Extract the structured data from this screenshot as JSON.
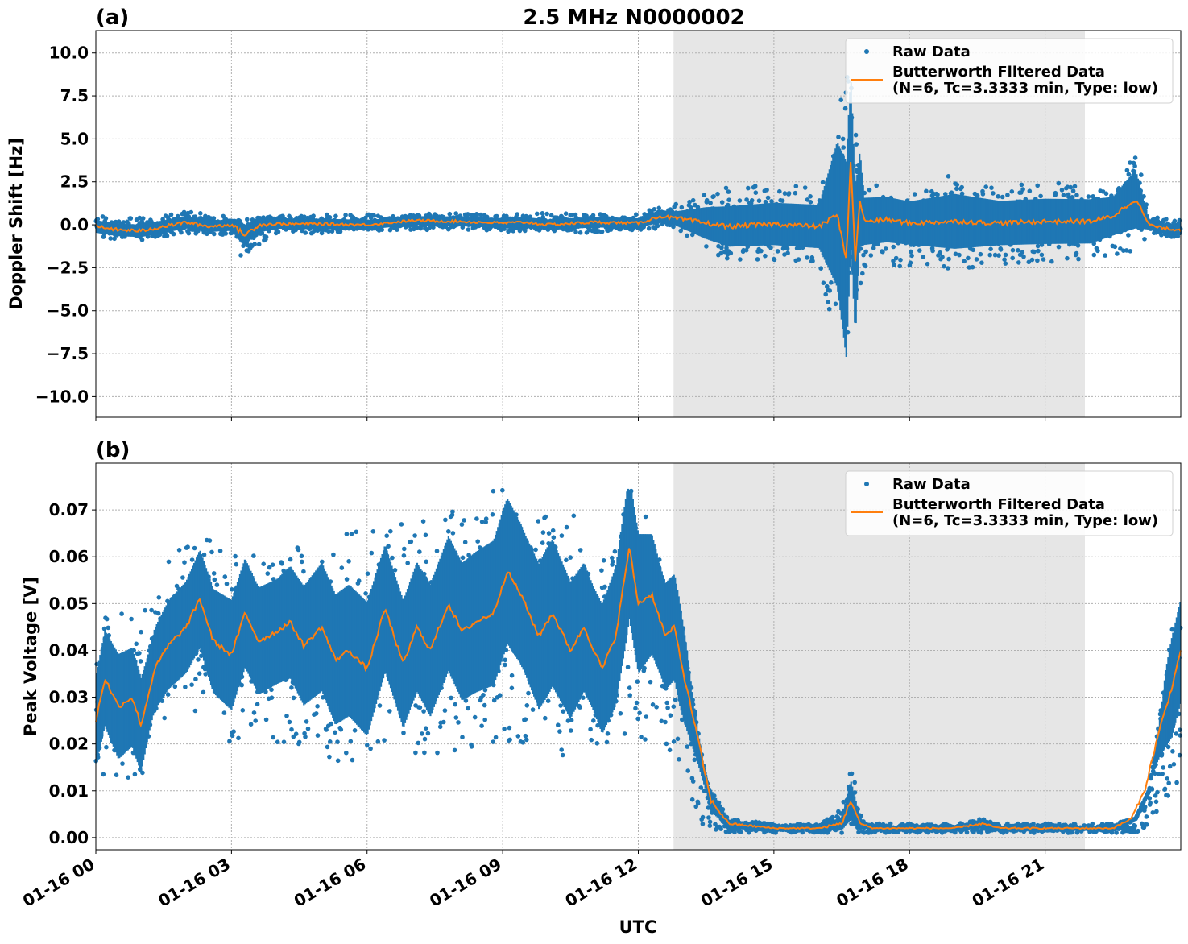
{
  "figure": {
    "title": "2.5 MHz N0000002",
    "xlabel": "UTC",
    "x_tick_labels": [
      "01-16 00",
      "01-16 03",
      "01-16 06",
      "01-16 09",
      "01-16 12",
      "01-16 15",
      "01-16 18",
      "01-16 21"
    ]
  },
  "chart_data": [
    {
      "type": "scatter",
      "panel_label": "(a)",
      "title": "2.5 MHz N0000002",
      "xlabel": "",
      "ylabel": "Doppler Shift [Hz]",
      "x_unit": "hours UTC on 01-16",
      "xlim": [
        0,
        24
      ],
      "ylim": [
        -11.2,
        11.3
      ],
      "x_ticks": [
        0,
        3,
        6,
        9,
        12,
        15,
        18,
        21
      ],
      "y_ticks": [
        -10.0,
        -7.5,
        -5.0,
        -2.5,
        0.0,
        2.5,
        5.0,
        7.5,
        10.0
      ],
      "y_tick_labels": [
        "−10.0",
        "−7.5",
        "−5.0",
        "−2.5",
        "0.0",
        "2.5",
        "5.0",
        "7.5",
        "10.0"
      ],
      "grid": true,
      "legend": "top-right",
      "shaded_region": [
        12.78,
        21.88
      ],
      "series": [
        {
          "name": "Raw Data",
          "kind": "scatter",
          "color": "#1f77b4",
          "x": [
            0,
            1,
            2,
            3,
            3.2,
            4,
            5,
            6,
            7,
            8,
            9,
            10,
            11,
            12,
            12.8,
            13.5,
            14,
            15,
            16,
            16.6,
            16.8,
            17,
            18,
            19,
            20,
            21,
            22,
            22.5,
            23,
            23.3,
            24
          ],
          "low": [
            -0.8,
            -0.9,
            -0.5,
            -0.6,
            -1.9,
            -0.5,
            -0.5,
            -0.4,
            -0.3,
            -0.3,
            -0.4,
            -0.4,
            -0.5,
            -0.3,
            -0.2,
            -1.5,
            -2.0,
            -2.1,
            -2.2,
            -10.0,
            -8.0,
            -2.5,
            -2.4,
            -2.6,
            -2.3,
            -2.3,
            -2.0,
            -2.0,
            -1.5,
            -0.5,
            -0.8
          ],
          "high": [
            0.5,
            0.4,
            0.8,
            0.5,
            0.3,
            0.5,
            0.6,
            0.6,
            0.6,
            0.7,
            0.6,
            0.7,
            0.6,
            0.7,
            1.2,
            1.8,
            2.2,
            2.3,
            2.3,
            10.3,
            7.0,
            2.4,
            2.1,
            3.1,
            2.3,
            2.4,
            2.6,
            2.0,
            4.6,
            0.5,
            0.3
          ]
        },
        {
          "name": "Butterworth Filtered Data\n(N=6, Tc=3.3333 min, Type: low)",
          "kind": "line",
          "color": "#ff7f0e",
          "x": [
            0,
            0.5,
            1,
            1.5,
            2,
            2.5,
            3,
            3.3,
            3.6,
            4,
            5,
            6,
            7,
            8,
            9,
            9.5,
            10,
            11,
            12,
            12.5,
            13,
            13.5,
            14,
            15,
            16,
            16.4,
            16.6,
            16.7,
            16.8,
            16.9,
            17,
            17.5,
            18,
            19,
            20,
            21,
            22,
            22.5,
            23,
            23.3,
            23.6,
            24
          ],
          "y": [
            -0.1,
            -0.3,
            -0.35,
            -0.1,
            0.15,
            -0.1,
            0.0,
            -0.6,
            0.0,
            0.05,
            0.05,
            0.0,
            0.25,
            0.2,
            0.1,
            0.15,
            0.0,
            0.15,
            0.1,
            0.5,
            0.3,
            0.1,
            -0.1,
            0.05,
            -0.1,
            0.6,
            -2.0,
            3.8,
            -2.2,
            1.5,
            0.2,
            0.3,
            0.1,
            0.2,
            0.1,
            0.2,
            0.2,
            0.5,
            1.5,
            0.0,
            -0.2,
            -0.3
          ]
        }
      ]
    },
    {
      "type": "scatter",
      "panel_label": "(b)",
      "title": "",
      "xlabel": "UTC",
      "ylabel": "Peak Voltage [V]",
      "x_unit": "hours UTC on 01-16",
      "xlim": [
        0,
        24
      ],
      "ylim": [
        -0.0026,
        0.08
      ],
      "x_ticks": [
        0,
        3,
        6,
        9,
        12,
        15,
        18,
        21
      ],
      "y_ticks": [
        0.0,
        0.01,
        0.02,
        0.03,
        0.04,
        0.05,
        0.06,
        0.07
      ],
      "y_tick_labels": [
        "0.00",
        "0.01",
        "0.02",
        "0.03",
        "0.04",
        "0.05",
        "0.06",
        "0.07"
      ],
      "grid": true,
      "legend": "top-right",
      "shaded_region": [
        12.78,
        21.88
      ],
      "series": [
        {
          "name": "Raw Data",
          "kind": "scatter",
          "color": "#1f77b4",
          "x": [
            0,
            0.5,
            1.0,
            1.2,
            1.5,
            2,
            2.5,
            3,
            4,
            5,
            6,
            6.5,
            7,
            8,
            9,
            9.5,
            10,
            11,
            11.7,
            12,
            12.5,
            12.9,
            13.2,
            13.5,
            14,
            15,
            16,
            16.5,
            16.7,
            16.9,
            17,
            18,
            19,
            19.6,
            20,
            21,
            22,
            22.5,
            23,
            23.3,
            23.6,
            23.8,
            24
          ],
          "low": [
            0.014,
            0.011,
            0.012,
            0.02,
            0.025,
            0.028,
            0.025,
            0.02,
            0.02,
            0.016,
            0.015,
            0.02,
            0.018,
            0.018,
            0.02,
            0.02,
            0.015,
            0.02,
            0.02,
            0.02,
            0.022,
            0.015,
            0.005,
            0.002,
            0.001,
            0.001,
            0.001,
            0.001,
            0.002,
            0.001,
            0.001,
            0.001,
            0.001,
            0.001,
            0.001,
            0.001,
            0.001,
            0.001,
            0.001,
            0.002,
            0.005,
            0.01,
            0.012
          ],
          "high": [
            0.048,
            0.051,
            0.048,
            0.05,
            0.058,
            0.063,
            0.064,
            0.062,
            0.06,
            0.065,
            0.066,
            0.068,
            0.067,
            0.07,
            0.076,
            0.073,
            0.072,
            0.067,
            0.075,
            0.073,
            0.063,
            0.055,
            0.03,
            0.012,
            0.004,
            0.003,
            0.003,
            0.006,
            0.017,
            0.006,
            0.003,
            0.003,
            0.003,
            0.004,
            0.003,
            0.003,
            0.003,
            0.003,
            0.004,
            0.01,
            0.03,
            0.048,
            0.051
          ]
        },
        {
          "name": "Butterworth Filtered Data\n(N=6, Tc=3.3333 min, Type: low)",
          "kind": "line",
          "color": "#ff7f0e",
          "x": [
            0,
            0.2,
            0.5,
            0.8,
            1.0,
            1.3,
            1.6,
            2.0,
            2.3,
            2.6,
            3.0,
            3.3,
            3.6,
            4.0,
            4.3,
            4.6,
            5.0,
            5.3,
            5.6,
            6.0,
            6.4,
            6.8,
            7.1,
            7.4,
            7.8,
            8.1,
            8.4,
            8.8,
            9.1,
            9.4,
            9.8,
            10.1,
            10.5,
            10.8,
            11.2,
            11.5,
            11.8,
            12.0,
            12.3,
            12.6,
            12.8,
            13.0,
            13.3,
            13.6,
            14.0,
            15,
            16,
            16.5,
            16.7,
            16.9,
            17.2,
            18,
            19,
            19.6,
            20,
            21,
            22,
            22.5,
            22.9,
            23.2,
            23.5,
            23.8,
            24
          ],
          "y": [
            0.025,
            0.034,
            0.028,
            0.03,
            0.024,
            0.036,
            0.041,
            0.045,
            0.051,
            0.042,
            0.039,
            0.048,
            0.042,
            0.044,
            0.046,
            0.041,
            0.045,
            0.038,
            0.04,
            0.036,
            0.049,
            0.037,
            0.045,
            0.04,
            0.05,
            0.044,
            0.046,
            0.048,
            0.057,
            0.052,
            0.043,
            0.048,
            0.04,
            0.045,
            0.036,
            0.043,
            0.062,
            0.05,
            0.052,
            0.043,
            0.045,
            0.035,
            0.022,
            0.008,
            0.003,
            0.002,
            0.002,
            0.003,
            0.008,
            0.003,
            0.002,
            0.002,
            0.002,
            0.003,
            0.002,
            0.002,
            0.002,
            0.002,
            0.004,
            0.01,
            0.022,
            0.032,
            0.04
          ]
        }
      ]
    }
  ]
}
